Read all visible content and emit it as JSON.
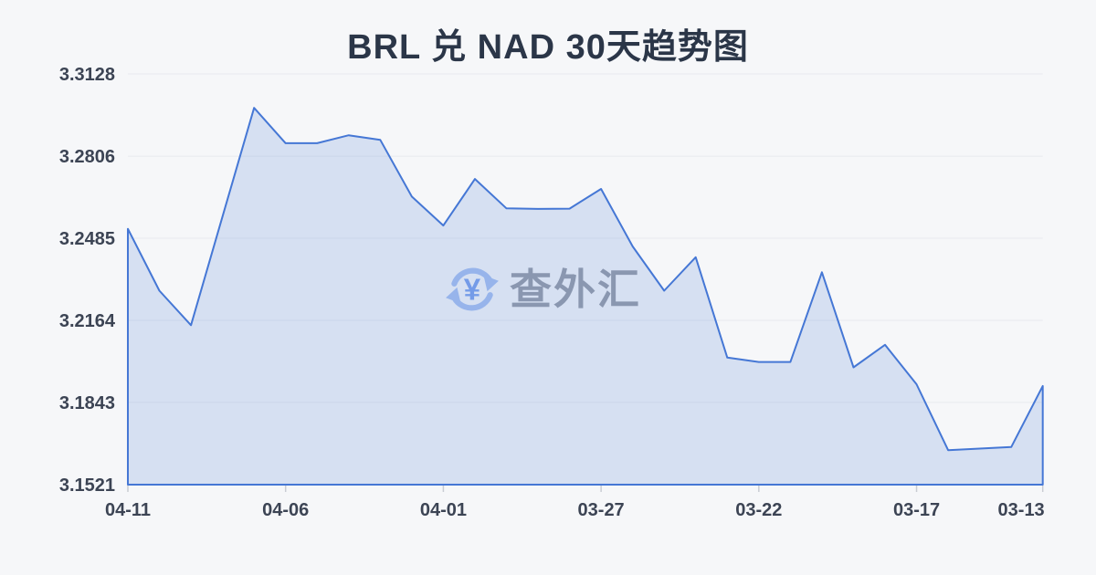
{
  "title": "BRL 兑 NAD 30天趋势图",
  "watermark": {
    "text": "查外汇",
    "yen_symbol": "¥"
  },
  "colors": {
    "background": "#f6f7f9",
    "title_text": "#2b3648",
    "line": "#4577d5",
    "area_fill": "rgba(114,150,222,0.24)",
    "gridline": "#e8eaee",
    "axis_label": "#3c4454",
    "tick_mark": "#c9ccd3",
    "watermark_text": "#8b909b",
    "watermark_icon": "#9cbaf0",
    "watermark_yen": "#6b96ea"
  },
  "chart_data": {
    "type": "area",
    "title": "BRL 兑 NAD 30天趋势图",
    "grid": true,
    "legend": false,
    "x": [
      "04-11",
      "04-10",
      "04-09",
      "04-08",
      "04-07",
      "04-06",
      "04-05",
      "04-04",
      "04-03",
      "04-02",
      "04-01",
      "03-31",
      "03-30",
      "03-29",
      "03-28",
      "03-27",
      "03-26",
      "03-25",
      "03-24",
      "03-23",
      "03-22",
      "03-21",
      "03-20",
      "03-19",
      "03-18",
      "03-17",
      "03-16",
      "03-15",
      "03-14",
      "03-13"
    ],
    "values": [
      3.2522,
      3.228,
      3.2145,
      3.257,
      3.2995,
      3.2857,
      3.2857,
      3.2888,
      3.287,
      3.2648,
      3.2535,
      3.2717,
      3.2602,
      3.26,
      3.2601,
      3.2678,
      3.2453,
      3.228,
      3.2411,
      3.2018,
      3.2001,
      3.2001,
      3.2352,
      3.198,
      3.2068,
      3.1914,
      3.1656,
      3.1662,
      3.1668,
      3.1907
    ],
    "shown_x_label_indices": [
      0,
      5,
      10,
      15,
      20,
      25,
      29
    ],
    "shown_x_labels": [
      "04-11",
      "04-06",
      "04-01",
      "03-27",
      "03-22",
      "03-17",
      "03-13"
    ],
    "y_tick_labels": [
      "3.1521",
      "3.1843",
      "3.2164",
      "3.2485",
      "3.2806",
      "3.3128"
    ],
    "y_ticks": [
      3.1521,
      3.1843,
      3.2164,
      3.2485,
      3.2806,
      3.3128
    ],
    "ylim": [
      3.1521,
      3.3128
    ],
    "xlabel": "",
    "ylabel": ""
  }
}
